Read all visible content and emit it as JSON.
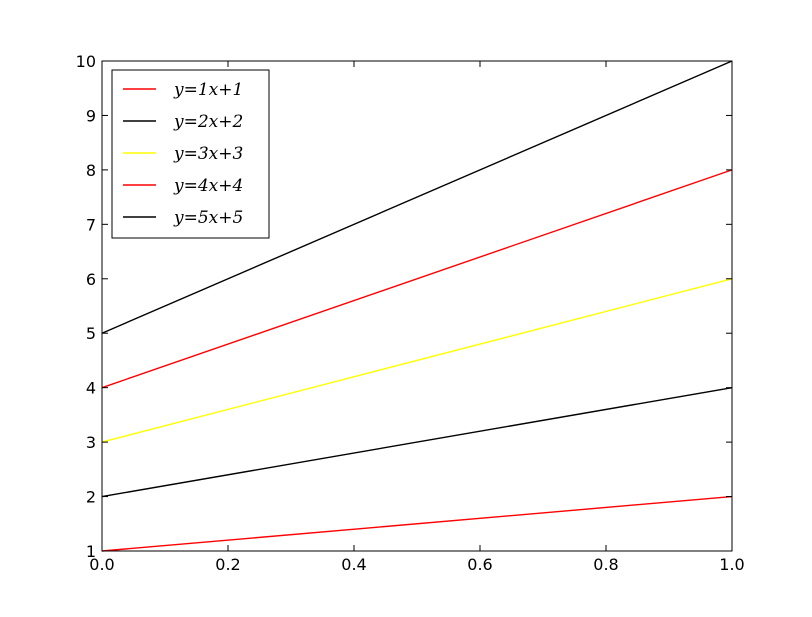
{
  "chart_data": {
    "type": "line",
    "title": "",
    "xlabel": "",
    "ylabel": "",
    "xlim": [
      0.0,
      1.0
    ],
    "ylim": [
      1,
      10
    ],
    "x_ticks": [
      "0.0",
      "0.2",
      "0.4",
      "0.6",
      "0.8",
      "1.0"
    ],
    "y_ticks": [
      "1",
      "2",
      "3",
      "4",
      "5",
      "6",
      "7",
      "8",
      "9",
      "10"
    ],
    "grid": false,
    "legend_position": "upper-left",
    "x": [
      0.0,
      1.0
    ],
    "series": [
      {
        "name": "y=1x+1",
        "color": "#ff0000",
        "values": [
          1,
          2
        ]
      },
      {
        "name": "y=2x+2",
        "color": "#000000",
        "values": [
          2,
          4
        ]
      },
      {
        "name": "y=3x+3",
        "color": "#ffff00",
        "values": [
          3,
          6
        ]
      },
      {
        "name": "y=4x+4",
        "color": "#ff0000",
        "values": [
          4,
          8
        ]
      },
      {
        "name": "y=5x+5",
        "color": "#000000",
        "values": [
          5,
          10
        ]
      }
    ]
  }
}
